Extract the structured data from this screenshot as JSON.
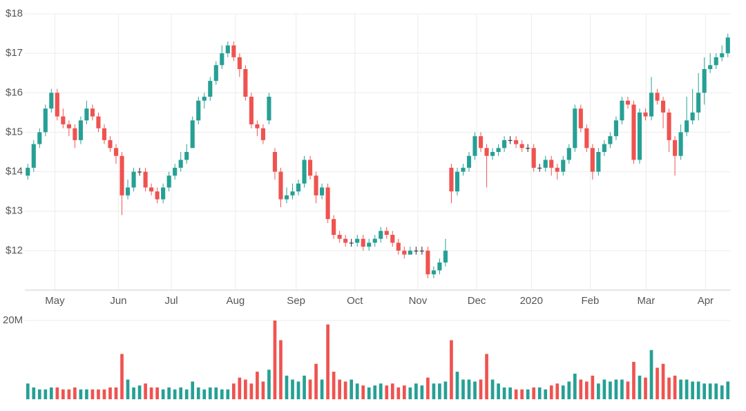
{
  "chart_data": [
    {
      "type": "candlestick",
      "up_color": "#26a095",
      "down_color": "#ef5350",
      "grid": true,
      "xlim": [
        -0.5,
        119.5
      ],
      "ylim": [
        11,
        18
      ],
      "xticks": [
        {
          "value": 4.6,
          "label": "May"
        },
        {
          "value": 15.4,
          "label": "Jun"
        },
        {
          "value": 24.4,
          "label": "Jul"
        },
        {
          "value": 35.3,
          "label": "Aug"
        },
        {
          "value": 45.6,
          "label": "Sep"
        },
        {
          "value": 55.6,
          "label": "Oct"
        },
        {
          "value": 66.3,
          "label": "Nov"
        },
        {
          "value": 76.3,
          "label": "Dec"
        },
        {
          "value": 85.6,
          "label": "2020"
        },
        {
          "value": 95.6,
          "label": "Feb"
        },
        {
          "value": 105.1,
          "label": "Mar"
        },
        {
          "value": 115.2,
          "label": "Apr"
        }
      ],
      "yticks": [
        {
          "value": 12,
          "label": "$12"
        },
        {
          "value": 13,
          "label": "$13"
        },
        {
          "value": 14,
          "label": "$14"
        },
        {
          "value": 15,
          "label": "$15"
        },
        {
          "value": 16,
          "label": "$16"
        },
        {
          "value": 17,
          "label": "$17"
        },
        {
          "value": 18,
          "label": "$18"
        }
      ],
      "open": [
        13.9,
        14.1,
        14.7,
        15.0,
        15.6,
        16.0,
        15.4,
        15.2,
        15.1,
        14.8,
        15.3,
        15.6,
        15.4,
        15.1,
        14.8,
        14.6,
        14.4,
        13.4,
        13.6,
        14.0,
        14.0,
        13.6,
        13.5,
        13.3,
        13.6,
        13.9,
        14.1,
        14.3,
        14.6,
        15.3,
        15.8,
        15.9,
        16.3,
        16.7,
        17.0,
        17.2,
        16.9,
        16.6,
        15.9,
        15.2,
        15.1,
        15.3,
        14.5,
        14.0,
        13.3,
        13.4,
        13.5,
        13.7,
        14.3,
        13.9,
        13.4,
        13.6,
        12.8,
        12.4,
        12.3,
        12.2,
        12.2,
        12.3,
        12.1,
        12.2,
        12.3,
        12.5,
        12.4,
        12.2,
        12.0,
        11.9,
        12.0,
        12.0,
        12.0,
        11.4,
        11.5,
        11.7,
        14.1,
        13.5,
        14.0,
        14.1,
        14.4,
        14.9,
        14.6,
        14.4,
        14.5,
        14.6,
        14.8,
        14.8,
        14.7,
        14.6,
        14.6,
        14.1,
        14.1,
        14.3,
        14.1,
        14.0,
        14.3,
        14.6,
        15.6,
        15.1,
        14.6,
        14.0,
        14.5,
        14.7,
        14.9,
        15.3,
        15.8,
        15.7,
        14.3,
        15.5,
        15.4,
        16.0,
        15.8,
        15.5,
        14.8,
        14.4,
        15.0,
        15.3,
        15.5,
        16.0,
        16.6,
        16.7,
        16.9,
        17.0
      ],
      "high": [
        14.2,
        14.8,
        15.1,
        15.7,
        16.1,
        16.1,
        15.6,
        15.3,
        15.2,
        15.4,
        15.8,
        15.7,
        15.5,
        15.2,
        14.9,
        14.7,
        14.5,
        13.8,
        14.1,
        14.1,
        14.1,
        13.7,
        13.6,
        13.7,
        14.0,
        14.2,
        14.5,
        14.7,
        15.4,
        15.9,
        16.0,
        16.4,
        16.8,
        17.2,
        17.3,
        17.3,
        17.0,
        16.7,
        16.0,
        15.3,
        15.2,
        16.0,
        14.6,
        14.1,
        13.6,
        13.7,
        13.8,
        14.4,
        14.4,
        14.0,
        13.7,
        13.7,
        12.9,
        12.5,
        12.4,
        12.3,
        12.4,
        12.4,
        12.3,
        12.4,
        12.6,
        12.6,
        12.5,
        12.3,
        12.1,
        12.1,
        12.1,
        12.1,
        12.1,
        11.6,
        11.8,
        12.3,
        14.2,
        14.1,
        14.2,
        14.5,
        15.0,
        15.0,
        14.7,
        14.6,
        14.7,
        14.9,
        14.9,
        14.9,
        14.8,
        14.7,
        14.7,
        14.2,
        14.4,
        14.4,
        14.2,
        14.4,
        14.7,
        15.7,
        15.7,
        15.2,
        14.7,
        14.6,
        14.8,
        15.0,
        15.4,
        15.9,
        15.9,
        15.8,
        15.6,
        15.6,
        16.4,
        16.1,
        15.9,
        15.6,
        14.9,
        15.2,
        15.9,
        16.1,
        16.5,
        16.9,
        17.0,
        17.0,
        17.2,
        17.5
      ],
      "low": [
        13.8,
        14.0,
        14.6,
        14.9,
        15.5,
        15.3,
        15.1,
        14.9,
        14.6,
        14.7,
        15.2,
        15.3,
        15.0,
        14.7,
        14.5,
        14.2,
        12.9,
        13.3,
        13.5,
        13.9,
        13.5,
        13.4,
        13.2,
        13.2,
        13.5,
        13.8,
        14.0,
        14.2,
        14.6,
        15.2,
        15.6,
        15.8,
        16.2,
        16.6,
        16.9,
        16.8,
        16.4,
        15.8,
        15.1,
        14.9,
        14.7,
        15.2,
        13.8,
        13.1,
        13.2,
        13.3,
        13.4,
        13.6,
        13.8,
        13.2,
        13.3,
        12.7,
        12.3,
        12.2,
        12.1,
        12.1,
        12.1,
        12.0,
        12.0,
        12.1,
        12.2,
        12.3,
        12.1,
        11.9,
        11.8,
        11.9,
        11.9,
        11.9,
        11.3,
        11.3,
        11.4,
        11.6,
        13.2,
        13.4,
        13.9,
        14.0,
        14.3,
        14.5,
        13.6,
        14.3,
        14.4,
        14.5,
        14.7,
        14.6,
        14.5,
        14.5,
        14.0,
        14.0,
        14.0,
        13.9,
        13.8,
        13.9,
        14.2,
        14.5,
        15.0,
        14.5,
        13.8,
        13.9,
        14.4,
        14.6,
        14.8,
        15.2,
        15.6,
        14.2,
        14.2,
        15.3,
        15.3,
        15.7,
        15.1,
        14.5,
        13.9,
        14.3,
        14.9,
        15.2,
        15.3,
        15.7,
        16.5,
        16.6,
        16.8,
        16.9
      ],
      "close": [
        14.1,
        14.7,
        15.0,
        15.6,
        16.0,
        15.4,
        15.2,
        15.1,
        14.8,
        15.3,
        15.6,
        15.4,
        15.1,
        14.8,
        14.6,
        14.4,
        13.4,
        13.6,
        14.0,
        14.0,
        13.6,
        13.5,
        13.3,
        13.6,
        13.9,
        14.1,
        14.3,
        14.5,
        15.3,
        15.8,
        15.9,
        16.3,
        16.7,
        17.0,
        17.2,
        16.9,
        16.6,
        15.9,
        15.2,
        15.1,
        14.8,
        15.9,
        14.0,
        13.3,
        13.4,
        13.5,
        13.7,
        14.3,
        13.9,
        13.4,
        13.6,
        12.8,
        12.4,
        12.3,
        12.2,
        12.2,
        12.3,
        12.1,
        12.2,
        12.3,
        12.5,
        12.4,
        12.2,
        12.0,
        11.9,
        12.0,
        12.0,
        12.0,
        11.4,
        11.5,
        11.7,
        12.0,
        13.5,
        14.0,
        14.1,
        14.4,
        14.9,
        14.6,
        14.4,
        14.5,
        14.6,
        14.8,
        14.8,
        14.7,
        14.6,
        14.6,
        14.1,
        14.1,
        14.3,
        14.1,
        14.0,
        14.3,
        14.6,
        15.6,
        15.1,
        14.6,
        14.0,
        14.5,
        14.7,
        14.9,
        15.3,
        15.8,
        15.7,
        14.3,
        15.5,
        15.4,
        16.0,
        15.8,
        15.5,
        14.8,
        14.4,
        15.0,
        15.3,
        15.5,
        16.0,
        16.6,
        16.7,
        16.9,
        17.0,
        17.4
      ]
    },
    {
      "type": "bar",
      "xlim": [
        -0.5,
        119.5
      ],
      "ylim": [
        0,
        20
      ],
      "yticks": [
        {
          "value": 20,
          "label": "20M"
        }
      ],
      "values": [
        4,
        3,
        2.5,
        2.5,
        3,
        3,
        2.5,
        2.5,
        3,
        2.5,
        2.5,
        2.5,
        2.5,
        2.5,
        3,
        3,
        11.5,
        5,
        3,
        3.5,
        4,
        3,
        3,
        2.5,
        3,
        2.5,
        3,
        2.5,
        4.5,
        3,
        2.5,
        3,
        3,
        2.5,
        2.5,
        4,
        5.5,
        5,
        4,
        7,
        4.5,
        7.5,
        20,
        15,
        6,
        5,
        4.5,
        6,
        5,
        9,
        5,
        19,
        7,
        5,
        4.5,
        5,
        4,
        3.5,
        3,
        3.5,
        4,
        3.5,
        4,
        3,
        3.5,
        3,
        4,
        3.5,
        5.5,
        4,
        4,
        4.5,
        15,
        7,
        5,
        5,
        4.5,
        5,
        11.5,
        5,
        4,
        3,
        3,
        2.5,
        2.5,
        2.5,
        3,
        3,
        2.5,
        3.5,
        4,
        3.5,
        4.5,
        6.5,
        5,
        4.5,
        6,
        4,
        5,
        4.5,
        5,
        5,
        4.5,
        9.5,
        6,
        5.5,
        12.5,
        8,
        9,
        5.5,
        6,
        5,
        5,
        4.5,
        4.5,
        4,
        4,
        4,
        3.5,
        4.5
      ]
    }
  ]
}
